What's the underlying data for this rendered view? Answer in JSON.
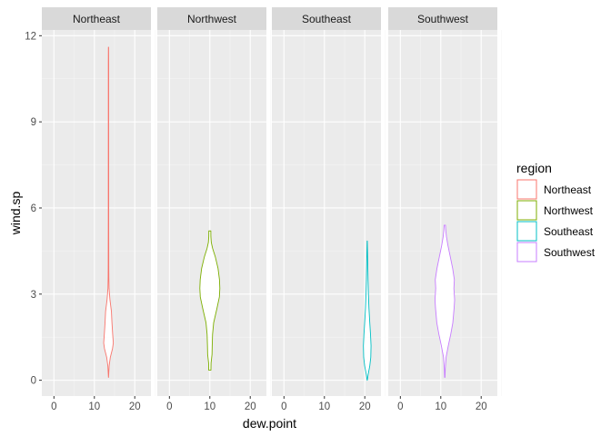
{
  "chart_data": {
    "type": "violin",
    "xlabel": "dew.point",
    "ylabel": "wind.sp",
    "facet_labels": [
      "Northeast",
      "Northwest",
      "Southeast",
      "Southwest"
    ],
    "xlim": [
      -3,
      24
    ],
    "ylim": [
      -0.55,
      12.2
    ],
    "x_ticks": [
      0,
      10,
      20
    ],
    "y_ticks": [
      0,
      3,
      6,
      9,
      12
    ],
    "grid": true,
    "legend": {
      "title": "region",
      "position": "right",
      "entries": [
        "Northeast",
        "Northwest",
        "Southeast",
        "Southwest"
      ]
    },
    "series": [
      {
        "name": "Northeast",
        "color": "#F8766D",
        "x_center": 13.5,
        "y_min": 0.1,
        "y_max": 11.6,
        "profile": [
          [
            0.1,
            0.05
          ],
          [
            0.5,
            0.7
          ],
          [
            0.8,
            2.0
          ],
          [
            1.1,
            4.4
          ],
          [
            1.3,
            5.3
          ],
          [
            1.6,
            4.6
          ],
          [
            2.0,
            3.8
          ],
          [
            2.4,
            3.2
          ],
          [
            2.8,
            1.6
          ],
          [
            3.2,
            0.6
          ],
          [
            3.6,
            0.38
          ],
          [
            4.0,
            0.3
          ],
          [
            4.6,
            0.28
          ],
          [
            5.5,
            0.22
          ],
          [
            7.0,
            0.22
          ],
          [
            9.0,
            0.2
          ],
          [
            11.0,
            0.2
          ],
          [
            11.6,
            0.12
          ]
        ]
      },
      {
        "name": "Northwest",
        "color": "#7CAE00",
        "x_center": 10.0,
        "y_min": 0.35,
        "y_max": 5.2,
        "profile": [
          [
            0.35,
            1.2
          ],
          [
            0.6,
            1.35
          ],
          [
            0.9,
            2.4
          ],
          [
            1.2,
            2.6
          ],
          [
            1.6,
            3.0
          ],
          [
            2.0,
            4.2
          ],
          [
            2.5,
            7.8
          ],
          [
            2.9,
            10.5
          ],
          [
            3.2,
            11.0
          ],
          [
            3.5,
            10.6
          ],
          [
            3.9,
            9.0
          ],
          [
            4.3,
            6.0
          ],
          [
            4.6,
            3.0
          ],
          [
            4.8,
            1.6
          ],
          [
            5.0,
            1.15
          ],
          [
            5.2,
            1.1
          ]
        ]
      },
      {
        "name": "Southeast",
        "color": "#00BFC4",
        "x_center": 20.6,
        "y_min": 0.0,
        "y_max": 4.85,
        "profile": [
          [
            0.0,
            0.1
          ],
          [
            0.2,
            1.0
          ],
          [
            0.5,
            2.8
          ],
          [
            0.8,
            3.9
          ],
          [
            1.2,
            4.2
          ],
          [
            1.6,
            3.6
          ],
          [
            2.0,
            2.8
          ],
          [
            2.5,
            1.9
          ],
          [
            3.0,
            1.3
          ],
          [
            3.5,
            0.9
          ],
          [
            4.0,
            0.6
          ],
          [
            4.5,
            0.35
          ],
          [
            4.85,
            0.1
          ]
        ]
      },
      {
        "name": "Southwest",
        "color": "#C77CFF",
        "x_center": 11.0,
        "y_min": 0.1,
        "y_max": 5.4,
        "profile": [
          [
            0.1,
            0.2
          ],
          [
            0.4,
            0.5
          ],
          [
            0.8,
            1.4
          ],
          [
            1.2,
            3.8
          ],
          [
            1.6,
            6.5
          ],
          [
            2.0,
            8.8
          ],
          [
            2.5,
            10.2
          ],
          [
            2.8,
            10.8
          ],
          [
            3.2,
            10.0
          ],
          [
            3.5,
            10.5
          ],
          [
            3.9,
            8.6
          ],
          [
            4.3,
            6.0
          ],
          [
            4.7,
            3.4
          ],
          [
            5.0,
            1.8
          ],
          [
            5.2,
            1.1
          ],
          [
            5.4,
            0.7
          ]
        ]
      }
    ]
  }
}
